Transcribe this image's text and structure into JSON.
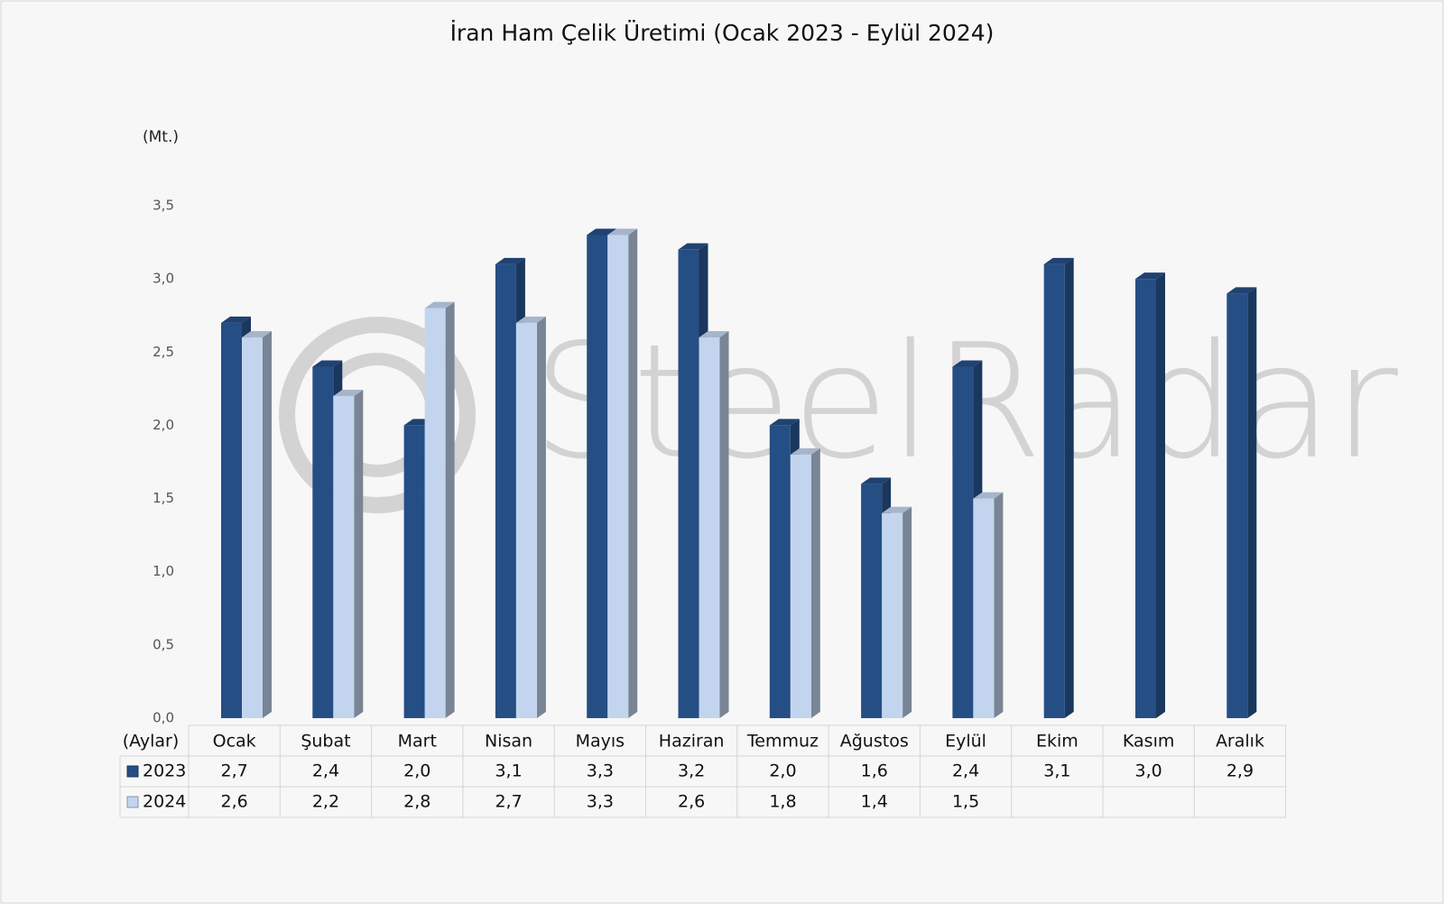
{
  "chart_data": {
    "type": "bar3d",
    "title": "İran Ham Çelik Üretimi (Ocak 2023 - Eylül 2024)",
    "y_axis_label": "(Mt.)",
    "x_axis_label": "(Aylar)",
    "watermark": "SteelRadar",
    "categories": [
      "Ocak",
      "Şubat",
      "Mart",
      "Nisan",
      "Mayıs",
      "Haziran",
      "Temmuz",
      "Ağustos",
      "Eylül",
      "Ekim",
      "Kasım",
      "Aralık"
    ],
    "series": [
      {
        "name": "2023",
        "color": "#254e85",
        "values": [
          2.7,
          2.4,
          2.0,
          3.1,
          3.3,
          3.2,
          2.0,
          1.6,
          2.4,
          3.1,
          3.0,
          2.9
        ],
        "value_labels": [
          "2,7",
          "2,4",
          "2,0",
          "3,1",
          "3,3",
          "3,2",
          "2,0",
          "1,6",
          "2,4",
          "3,1",
          "3,0",
          "2,9"
        ]
      },
      {
        "name": "2024",
        "color": "#c3d5ee",
        "values": [
          2.6,
          2.2,
          2.8,
          2.7,
          3.3,
          2.6,
          1.8,
          1.4,
          1.5,
          null,
          null,
          null
        ],
        "value_labels": [
          "2,6",
          "2,2",
          "2,8",
          "2,7",
          "3,3",
          "2,6",
          "1,8",
          "1,4",
          "1,5",
          null,
          null,
          null
        ]
      }
    ],
    "ylim": [
      0,
      3.5
    ],
    "yticks": [
      {
        "value": 0,
        "label": "0,0"
      },
      {
        "value": 0.5,
        "label": "0,5"
      },
      {
        "value": 1,
        "label": "1,0"
      },
      {
        "value": 1.5,
        "label": "1,5"
      },
      {
        "value": 2,
        "label": "2,0"
      },
      {
        "value": 2.5,
        "label": "2,5"
      },
      {
        "value": 3,
        "label": "3,0"
      },
      {
        "value": 3.5,
        "label": "3,5"
      }
    ],
    "grid": false
  }
}
